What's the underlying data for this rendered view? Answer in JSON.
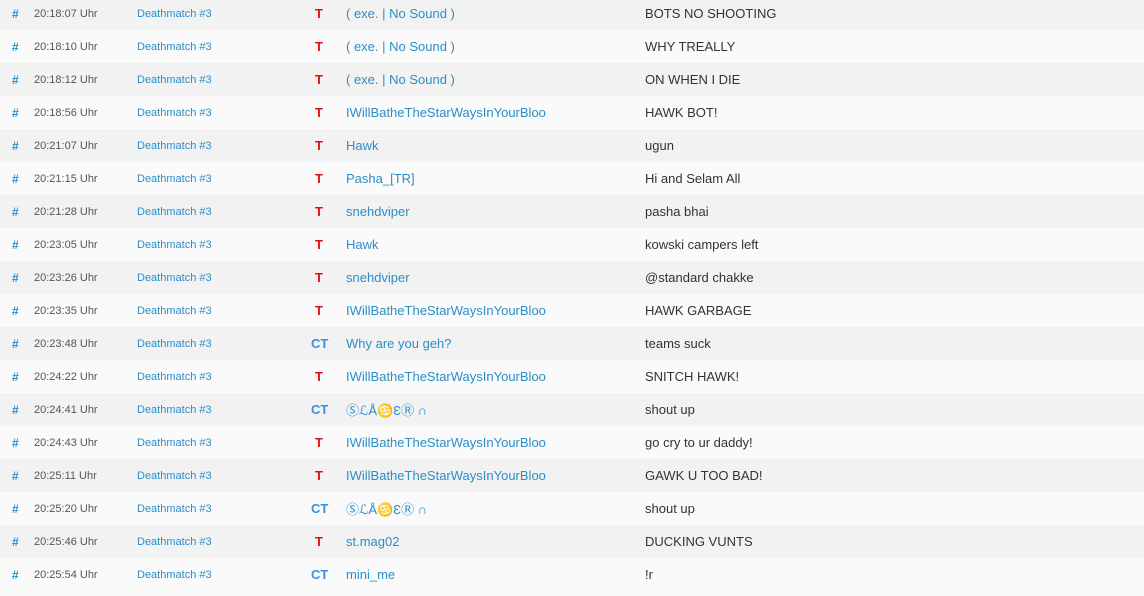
{
  "colors": {
    "link": "#2a8fc7",
    "team_t": "#e01010",
    "team_ct": "#3a8fe0"
  },
  "rows": [
    {
      "hash": "#",
      "time": "20:18:07 Uhr",
      "server": "Deathmatch #3",
      "team": "T",
      "name": "( exe. | No Sound )",
      "message": "BOTS NO SHOOTING"
    },
    {
      "hash": "#",
      "time": "20:18:10 Uhr",
      "server": "Deathmatch #3",
      "team": "T",
      "name": "( exe. | No Sound )",
      "message": "WHY TREALLY"
    },
    {
      "hash": "#",
      "time": "20:18:12 Uhr",
      "server": "Deathmatch #3",
      "team": "T",
      "name": "( exe. | No Sound )",
      "message": "ON WHEN I DIE"
    },
    {
      "hash": "#",
      "time": "20:18:56 Uhr",
      "server": "Deathmatch #3",
      "team": "T",
      "name": "IWillBatheTheStarWaysInYourBloo",
      "message": "HAWK BOT!"
    },
    {
      "hash": "#",
      "time": "20:21:07 Uhr",
      "server": "Deathmatch #3",
      "team": "T",
      "name": "Hawk",
      "message": "ugun"
    },
    {
      "hash": "#",
      "time": "20:21:15 Uhr",
      "server": "Deathmatch #3",
      "team": "T",
      "name": "Pasha_[TR]",
      "message": "Hi and Selam All"
    },
    {
      "hash": "#",
      "time": "20:21:28 Uhr",
      "server": "Deathmatch #3",
      "team": "T",
      "name": "snehdviper",
      "message": "pasha bhai"
    },
    {
      "hash": "#",
      "time": "20:23:05 Uhr",
      "server": "Deathmatch #3",
      "team": "T",
      "name": "Hawk",
      "message": "kowski campers left"
    },
    {
      "hash": "#",
      "time": "20:23:26 Uhr",
      "server": "Deathmatch #3",
      "team": "T",
      "name": "snehdviper",
      "message": "@standard chakke"
    },
    {
      "hash": "#",
      "time": "20:23:35 Uhr",
      "server": "Deathmatch #3",
      "team": "T",
      "name": "IWillBatheTheStarWaysInYourBloo",
      "message": "HAWK GARBAGE"
    },
    {
      "hash": "#",
      "time": "20:23:48 Uhr",
      "server": "Deathmatch #3",
      "team": "CT",
      "name": "Why are you geh?",
      "message": "teams suck"
    },
    {
      "hash": "#",
      "time": "20:24:22 Uhr",
      "server": "Deathmatch #3",
      "team": "T",
      "name": "IWillBatheTheStarWaysInYourBloo",
      "message": "SNITCH HAWK!"
    },
    {
      "hash": "#",
      "time": "20:24:41 Uhr",
      "server": "Deathmatch #3",
      "team": "CT",
      "name": "ⓈℒÅ♋ƐⓇ ∩",
      "message": "shout up"
    },
    {
      "hash": "#",
      "time": "20:24:43 Uhr",
      "server": "Deathmatch #3",
      "team": "T",
      "name": "IWillBatheTheStarWaysInYourBloo",
      "message": "go cry to ur daddy!"
    },
    {
      "hash": "#",
      "time": "20:25:11 Uhr",
      "server": "Deathmatch #3",
      "team": "T",
      "name": "IWillBatheTheStarWaysInYourBloo",
      "message": "GAWK U TOO BAD!"
    },
    {
      "hash": "#",
      "time": "20:25:20 Uhr",
      "server": "Deathmatch #3",
      "team": "CT",
      "name": "ⓈℒÅ♋ƐⓇ ∩",
      "message": "shout up"
    },
    {
      "hash": "#",
      "time": "20:25:46 Uhr",
      "server": "Deathmatch #3",
      "team": "T",
      "name": "st.mag02",
      "message": "DUCKING VUNTS"
    },
    {
      "hash": "#",
      "time": "20:25:54 Uhr",
      "server": "Deathmatch #3",
      "team": "CT",
      "name": "mini_me",
      "message": "!r"
    }
  ]
}
